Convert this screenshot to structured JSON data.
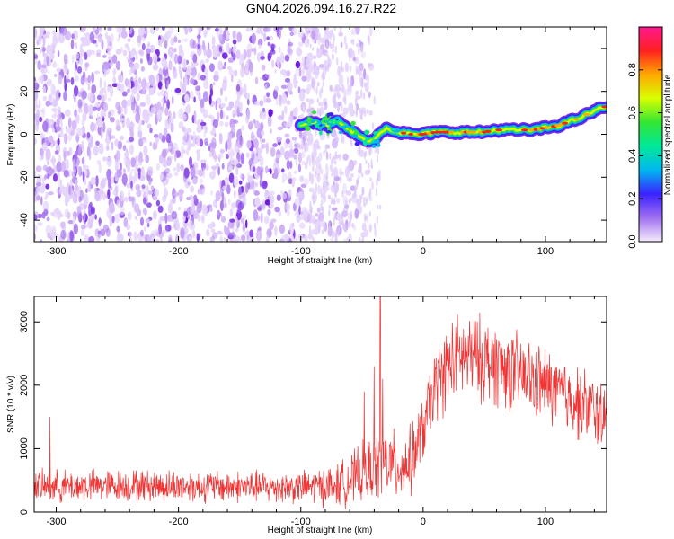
{
  "title": "GN04.2026.094.16.27.R22",
  "chart_data": [
    {
      "type": "heatmap",
      "name": "spectrogram",
      "xlabel": "Height of straight line (km)",
      "ylabel": "Frequency (Hz)",
      "xlim": [
        -318,
        150
      ],
      "ylim": [
        -50,
        50
      ],
      "xticks": [
        -300,
        -200,
        -100,
        0,
        100
      ],
      "yticks": [
        -40,
        -20,
        0,
        20,
        40
      ],
      "grid": false,
      "noise_region_km": [
        -318,
        -42
      ],
      "ridge": {
        "x": [
          -100,
          -90,
          -80,
          -70,
          -60,
          -50,
          -40,
          -35,
          -30,
          -20,
          -10,
          0,
          10,
          20,
          30,
          40,
          50,
          60,
          70,
          80,
          90,
          100,
          110,
          120,
          130,
          140,
          150
        ],
        "y": [
          5,
          6,
          4,
          6,
          2,
          -2,
          -3,
          1,
          3,
          1,
          0,
          0,
          1,
          1,
          1,
          1,
          1,
          2,
          2,
          2,
          2,
          3,
          4,
          6,
          8,
          11,
          13
        ]
      },
      "colorbar": {
        "label": "Normalized spectral amplitude",
        "range": [
          0,
          1
        ],
        "ticks": [
          "0.0",
          "0.2",
          "0.4",
          "0.6",
          "0.8"
        ],
        "colors": [
          "#f4ecfb",
          "#a070f0",
          "#3a22ff",
          "#00b8f0",
          "#00e89a",
          "#33e633",
          "#d8ff00",
          "#ffa800",
          "#ff2020",
          "#ff1890"
        ]
      }
    },
    {
      "type": "line",
      "name": "snr",
      "xlabel": "Height of straight line (km)",
      "ylabel": "SNR (10 * v/v)",
      "xlim": [
        -318,
        150
      ],
      "ylim": [
        0,
        3400
      ],
      "xticks": [
        -300,
        -200,
        -100,
        0,
        100
      ],
      "yticks": [
        0,
        1000,
        2000,
        3000
      ],
      "grid": false,
      "color": "#f03434",
      "envelope": {
        "x": [
          -318,
          -250,
          -150,
          -100,
          -70,
          -50,
          -40,
          -30,
          -20,
          -10,
          0,
          10,
          20,
          30,
          40,
          50,
          60,
          80,
          100,
          120,
          150
        ],
        "mean": [
          400,
          420,
          400,
          390,
          420,
          600,
          700,
          800,
          700,
          800,
          1300,
          2000,
          2300,
          2450,
          2450,
          2400,
          2350,
          2150,
          2000,
          1800,
          1500
        ],
        "spread": [
          300,
          300,
          300,
          300,
          400,
          550,
          600,
          700,
          600,
          650,
          600,
          700,
          800,
          800,
          800,
          800,
          800,
          750,
          700,
          700,
          650
        ]
      },
      "spikes": [
        {
          "x": -305,
          "y": 1500
        },
        {
          "x": -48,
          "y": 1900
        },
        {
          "x": -40,
          "y": 2300
        },
        {
          "x": -35,
          "y": 3400
        },
        {
          "x": -33,
          "y": 2100
        }
      ]
    }
  ]
}
